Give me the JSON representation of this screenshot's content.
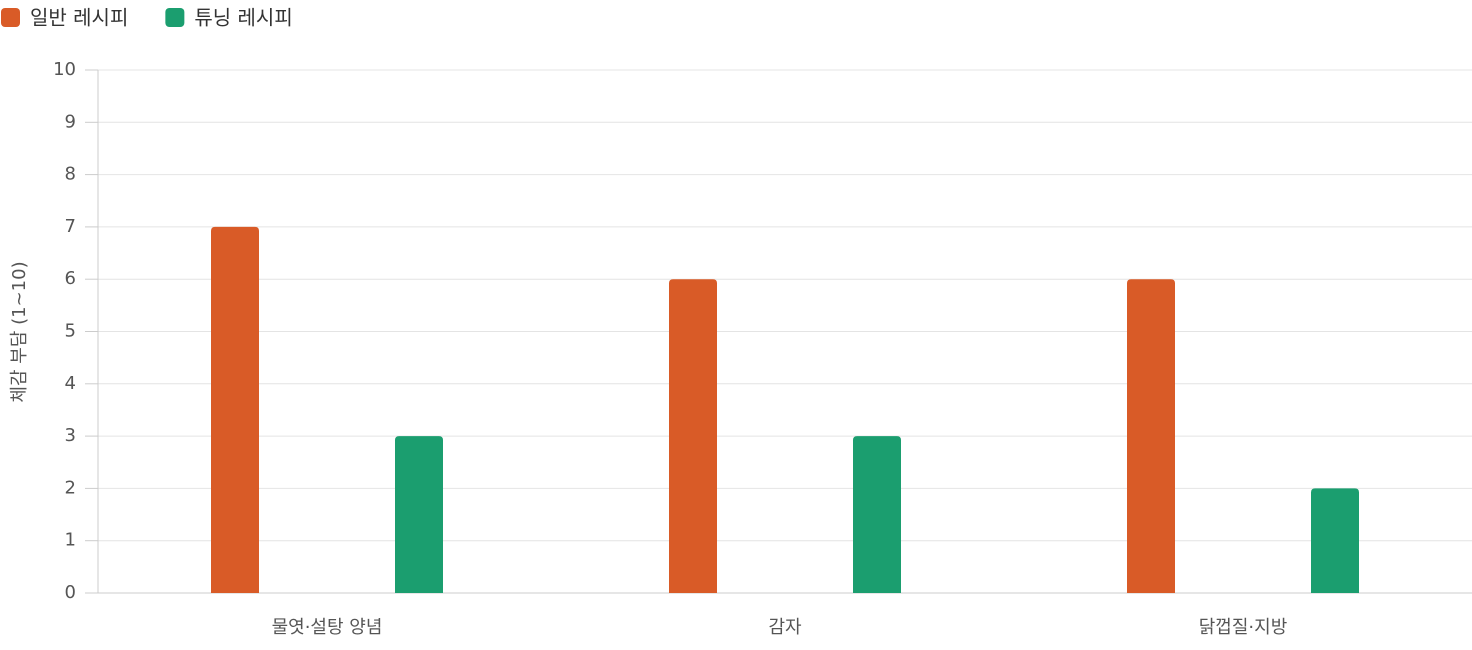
{
  "chart_data": {
    "type": "bar",
    "y_label": "체감 부담 (1~10)",
    "categories": [
      "물엿·설탕 양념",
      "감자",
      "닭껍질·지방"
    ],
    "series": [
      {
        "name": "일반 레시피",
        "color": "#d95b27",
        "values": [
          7,
          6,
          6
        ]
      },
      {
        "name": "튜닝 레시피",
        "color": "#1b9e6f",
        "values": [
          3,
          3,
          2
        ]
      }
    ],
    "ylim": [
      0,
      10
    ],
    "yticks": [
      0,
      1,
      2,
      3,
      4,
      5,
      6,
      7,
      8,
      9,
      10
    ],
    "grid": true,
    "legend": "top-left"
  }
}
